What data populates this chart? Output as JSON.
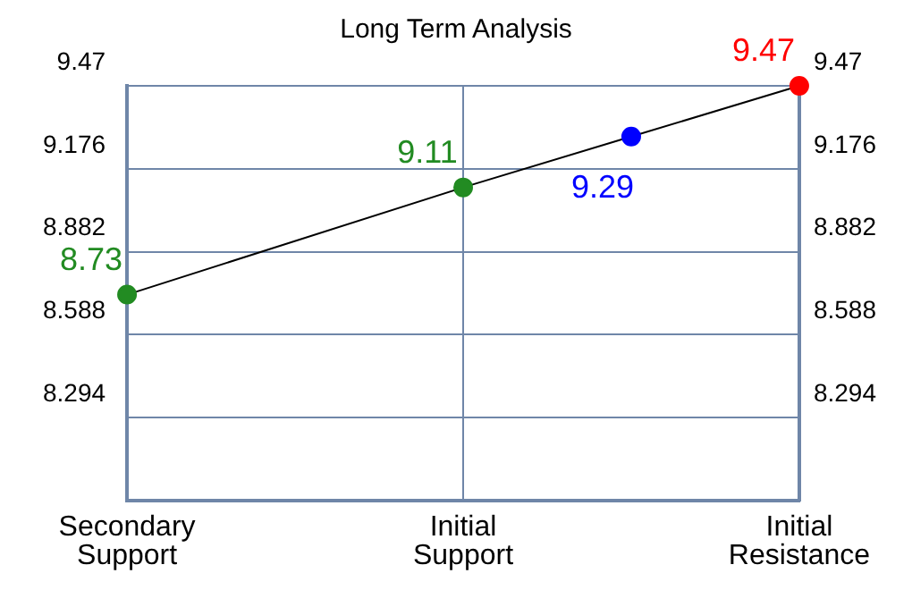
{
  "chart_data": {
    "type": "line",
    "title": "Long Term Analysis",
    "categories": [
      "Secondary Support",
      null,
      "Initial Support",
      null,
      "Initial Resistance"
    ],
    "series": [
      {
        "color": "#000000",
        "colors": [
          "#228b22",
          null,
          "#228b22",
          "#0000ff",
          "#ff0000"
        ],
        "values": [
          8.73,
          null,
          9.11,
          9.29,
          9.47
        ]
      }
    ],
    "ylim": [
      8.0,
      9.47
    ],
    "yticks": [
      8.294,
      8.588,
      8.882,
      9.176,
      9.47
    ],
    "y2lim": [
      8.0,
      9.47
    ],
    "y2ticks": [
      8.294,
      8.588,
      8.882,
      9.176,
      9.47
    ],
    "grid": true,
    "legend": false,
    "marker": "circle",
    "line_style": "solid",
    "data_labels": true
  }
}
